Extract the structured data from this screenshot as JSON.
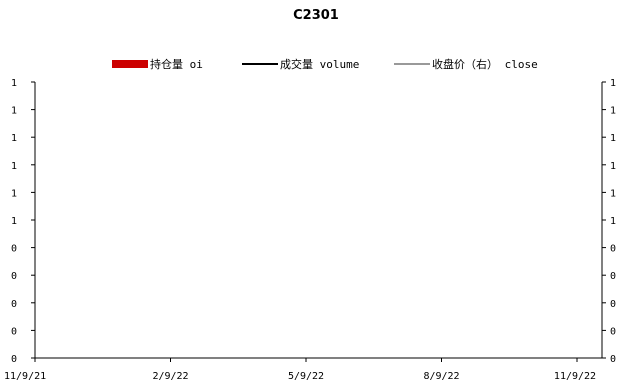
{
  "chart_data": {
    "type": "line",
    "title": "C2301",
    "legend": {
      "placement": "top",
      "items": [
        {
          "label": "持仓量 oi",
          "kind": "bar",
          "color": "#cc0000"
        },
        {
          "label": "成交量 volume",
          "kind": "line",
          "color": "#000000"
        },
        {
          "label": "收盘价（右） close",
          "kind": "line",
          "color": "#999999"
        }
      ]
    },
    "x_ticks": [
      "11/9/21",
      "2/9/22",
      "5/9/22",
      "8/9/22",
      "11/9/22"
    ],
    "y_left_ticks": [
      "0",
      "0",
      "0",
      "0",
      "0",
      "1",
      "1",
      "1",
      "1",
      "1",
      "1"
    ],
    "y_right_ticks": [
      "0",
      "0",
      "0",
      "0",
      "0",
      "1",
      "1",
      "1",
      "1",
      "1",
      "1"
    ],
    "series": [
      {
        "name": "持仓量 oi",
        "values": []
      },
      {
        "name": "成交量 volume",
        "values": []
      },
      {
        "name": "收盘价（右） close",
        "values": []
      }
    ],
    "grid": false
  }
}
